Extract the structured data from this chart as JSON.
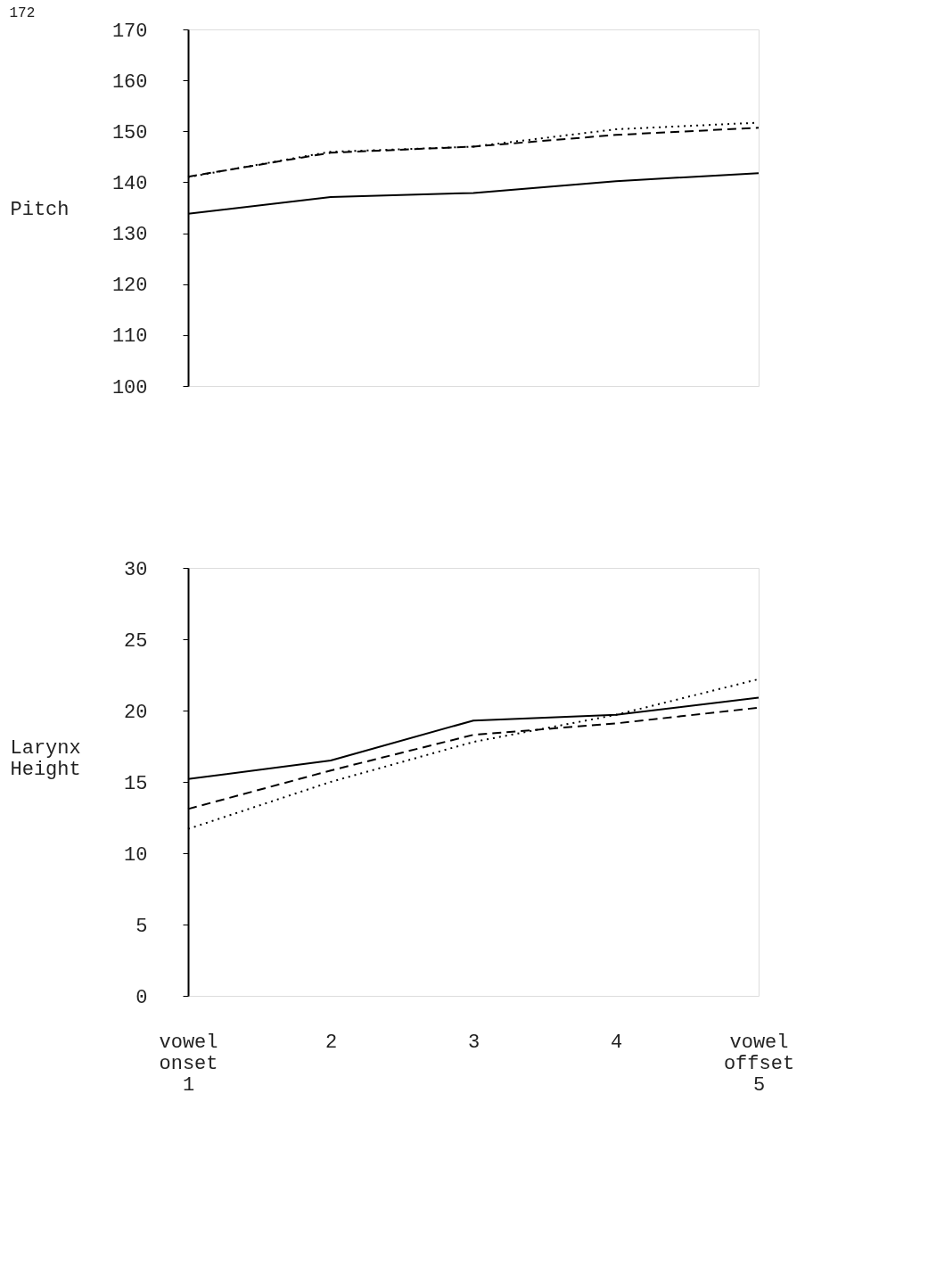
{
  "chart_data": [
    {
      "type": "line",
      "ylabel": "Pitch",
      "annotations": [
        "172"
      ],
      "categories": [
        null,
        null,
        null,
        null,
        null
      ],
      "ylim": [
        100,
        170
      ],
      "yticks": [
        100,
        110,
        120,
        130,
        140,
        150,
        160,
        170
      ],
      "tick_labels": "y",
      "series": [
        {
          "color": "#000000",
          "line_style": "solid",
          "values": [
            133.8,
            137.1,
            137.9,
            140.2,
            141.8
          ]
        },
        {
          "color": "#000000",
          "line_style": "dashed",
          "values": [
            141.1,
            145.8,
            147.0,
            149.3,
            150.7
          ]
        },
        {
          "color": "#000000",
          "line_style": "dotted",
          "values": [
            141.0,
            146.0,
            147.0,
            150.4,
            151.7
          ]
        }
      ]
    },
    {
      "type": "line",
      "ylabel": "Larynx\nHeight",
      "categories": [
        "vowel\nonset\n1",
        "2",
        "3",
        "4",
        "vowel\noffset\n5"
      ],
      "ylim": [
        0,
        30
      ],
      "yticks": [
        0,
        5,
        10,
        15,
        20,
        25,
        30
      ],
      "series": [
        {
          "color": "#000000",
          "line_style": "solid",
          "values": [
            15.2,
            16.5,
            19.3,
            19.7,
            20.9
          ]
        },
        {
          "color": "#000000",
          "line_style": "dashed",
          "values": [
            13.1,
            15.8,
            18.3,
            19.1,
            20.2
          ]
        },
        {
          "color": "#000000",
          "line_style": "dotted",
          "values": [
            11.7,
            15.0,
            17.8,
            19.7,
            22.2
          ]
        }
      ]
    }
  ]
}
